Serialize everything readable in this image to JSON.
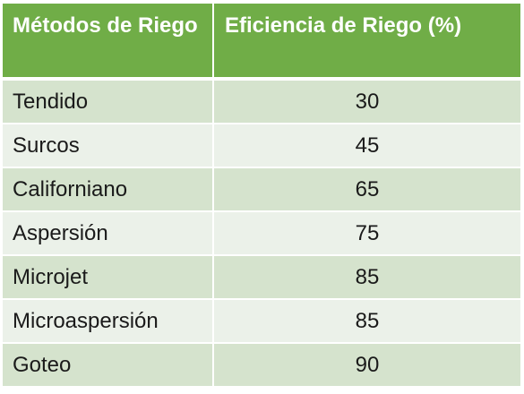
{
  "table": {
    "headers": [
      "Métodos de Riego",
      "Eficiencia de Riego (%)"
    ],
    "rows": [
      {
        "method": "Tendido",
        "efficiency": "30"
      },
      {
        "method": "Surcos",
        "efficiency": "45"
      },
      {
        "method": "Californiano",
        "efficiency": "65"
      },
      {
        "method": "Aspersión",
        "efficiency": "75"
      },
      {
        "method": "Microjet",
        "efficiency": "85"
      },
      {
        "method": "Microaspersión",
        "efficiency": "85"
      },
      {
        "method": "Goteo",
        "efficiency": "90"
      }
    ]
  },
  "colors": {
    "header": "#70ad47",
    "row_dark": "#d5e3cd",
    "row_light": "#ebf1e9"
  }
}
